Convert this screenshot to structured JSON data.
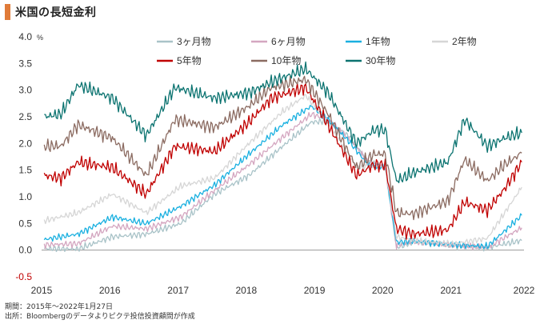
{
  "title": "米国の長短金利",
  "footnotes": [
    "期間：2015年～2022年1月27日",
    "出所：Bloombergのデータよりピクテ投信投資顧問が作成"
  ],
  "chart_data": {
    "type": "line",
    "y_unit": "%",
    "ylim": [
      -0.5,
      4.0
    ],
    "y_ticks": [
      "4.0",
      "3.5",
      "3.0",
      "2.5",
      "2.0",
      "1.5",
      "1.0",
      "0.5",
      "0.0",
      "-0.5"
    ],
    "x_ticks": [
      "2015",
      "2016",
      "2017",
      "2018",
      "2019",
      "2020",
      "2021",
      "2022"
    ],
    "xlim": [
      "2015-01-01",
      "2022-01-27"
    ],
    "grid": false,
    "legend_position": "top",
    "series": [
      {
        "name": "3ヶ月物",
        "color": "#a9c3c8",
        "x": [
          "2015-01",
          "2015-07",
          "2016-01",
          "2016-07",
          "2017-01",
          "2017-07",
          "2018-01",
          "2018-07",
          "2018-12",
          "2019-03",
          "2019-07",
          "2019-10",
          "2020-01",
          "2020-03",
          "2020-06",
          "2021-01",
          "2021-07",
          "2022-01"
        ],
        "y": [
          0.03,
          0.02,
          0.25,
          0.3,
          0.5,
          1.05,
          1.4,
          1.95,
          2.4,
          2.42,
          2.1,
          1.65,
          1.55,
          0.05,
          0.15,
          0.08,
          0.05,
          0.18
        ]
      },
      {
        "name": "6ヶ月物",
        "color": "#d4a6c0",
        "x": [
          "2015-01",
          "2015-07",
          "2016-01",
          "2016-07",
          "2017-01",
          "2017-07",
          "2018-01",
          "2018-07",
          "2018-12",
          "2019-03",
          "2019-07",
          "2019-10",
          "2020-01",
          "2020-03",
          "2020-06",
          "2021-01",
          "2021-07",
          "2022-01"
        ],
        "y": [
          0.1,
          0.12,
          0.45,
          0.4,
          0.62,
          1.12,
          1.6,
          2.12,
          2.55,
          2.45,
          2.05,
          1.65,
          1.55,
          0.08,
          0.17,
          0.09,
          0.05,
          0.42
        ]
      },
      {
        "name": "1年物",
        "color": "#1ab0e0",
        "x": [
          "2015-01",
          "2015-07",
          "2016-01",
          "2016-07",
          "2017-01",
          "2017-07",
          "2018-01",
          "2018-07",
          "2018-12",
          "2019-03",
          "2019-07",
          "2019-10",
          "2020-01",
          "2020-03",
          "2020-06",
          "2021-01",
          "2021-07",
          "2022-01"
        ],
        "y": [
          0.2,
          0.3,
          0.62,
          0.5,
          0.82,
          1.22,
          1.8,
          2.35,
          2.7,
          2.45,
          2.0,
          1.6,
          1.55,
          0.15,
          0.17,
          0.1,
          0.07,
          0.65
        ]
      },
      {
        "name": "2年物",
        "color": "#d6d6d6",
        "x": [
          "2015-01",
          "2015-07",
          "2016-01",
          "2016-07",
          "2017-01",
          "2017-07",
          "2018-01",
          "2018-07",
          "2018-11",
          "2019-03",
          "2019-08",
          "2019-11",
          "2020-01",
          "2020-03",
          "2020-06",
          "2021-01",
          "2021-07",
          "2022-01"
        ],
        "y": [
          0.55,
          0.7,
          1.05,
          0.7,
          1.2,
          1.35,
          2.0,
          2.6,
          2.9,
          2.4,
          1.55,
          1.6,
          1.55,
          0.25,
          0.18,
          0.12,
          0.22,
          1.18
        ]
      },
      {
        "name": "5年物",
        "color": "#c00000",
        "x": [
          "2015-01",
          "2015-04",
          "2015-07",
          "2016-01",
          "2016-07",
          "2016-12",
          "2017-07",
          "2018-01",
          "2018-05",
          "2018-11",
          "2019-03",
          "2019-08",
          "2019-11",
          "2020-01",
          "2020-03",
          "2020-06",
          "2020-12",
          "2021-03",
          "2021-07",
          "2021-10",
          "2022-01"
        ],
        "y": [
          1.4,
          1.35,
          1.65,
          1.55,
          1.05,
          1.95,
          1.85,
          2.4,
          2.85,
          3.05,
          2.35,
          1.4,
          1.6,
          1.6,
          0.4,
          0.3,
          0.38,
          0.9,
          0.75,
          1.15,
          1.65
        ]
      },
      {
        "name": "10年物",
        "color": "#8b6b61",
        "x": [
          "2015-01",
          "2015-04",
          "2015-07",
          "2016-01",
          "2016-07",
          "2016-12",
          "2017-07",
          "2018-01",
          "2018-05",
          "2018-11",
          "2019-03",
          "2019-08",
          "2019-11",
          "2020-01",
          "2020-03",
          "2020-06",
          "2020-12",
          "2021-03",
          "2021-07",
          "2021-10",
          "2022-01"
        ],
        "y": [
          1.95,
          1.95,
          2.35,
          2.1,
          1.4,
          2.45,
          2.3,
          2.7,
          3.05,
          3.2,
          2.55,
          1.55,
          1.8,
          1.8,
          0.7,
          0.68,
          0.92,
          1.7,
          1.3,
          1.6,
          1.82
        ]
      },
      {
        "name": "30年物",
        "color": "#0b7370",
        "x": [
          "2015-01",
          "2015-04",
          "2015-07",
          "2016-01",
          "2016-07",
          "2016-12",
          "2017-07",
          "2018-01",
          "2018-05",
          "2018-11",
          "2019-03",
          "2019-08",
          "2019-11",
          "2020-01",
          "2020-03",
          "2020-06",
          "2020-12",
          "2021-03",
          "2021-07",
          "2021-10",
          "2022-01"
        ],
        "y": [
          2.5,
          2.55,
          3.1,
          2.85,
          2.15,
          3.05,
          2.85,
          2.95,
          3.15,
          3.4,
          2.95,
          2.0,
          2.25,
          2.25,
          1.3,
          1.45,
          1.65,
          2.45,
          1.95,
          2.1,
          2.2
        ]
      }
    ]
  }
}
